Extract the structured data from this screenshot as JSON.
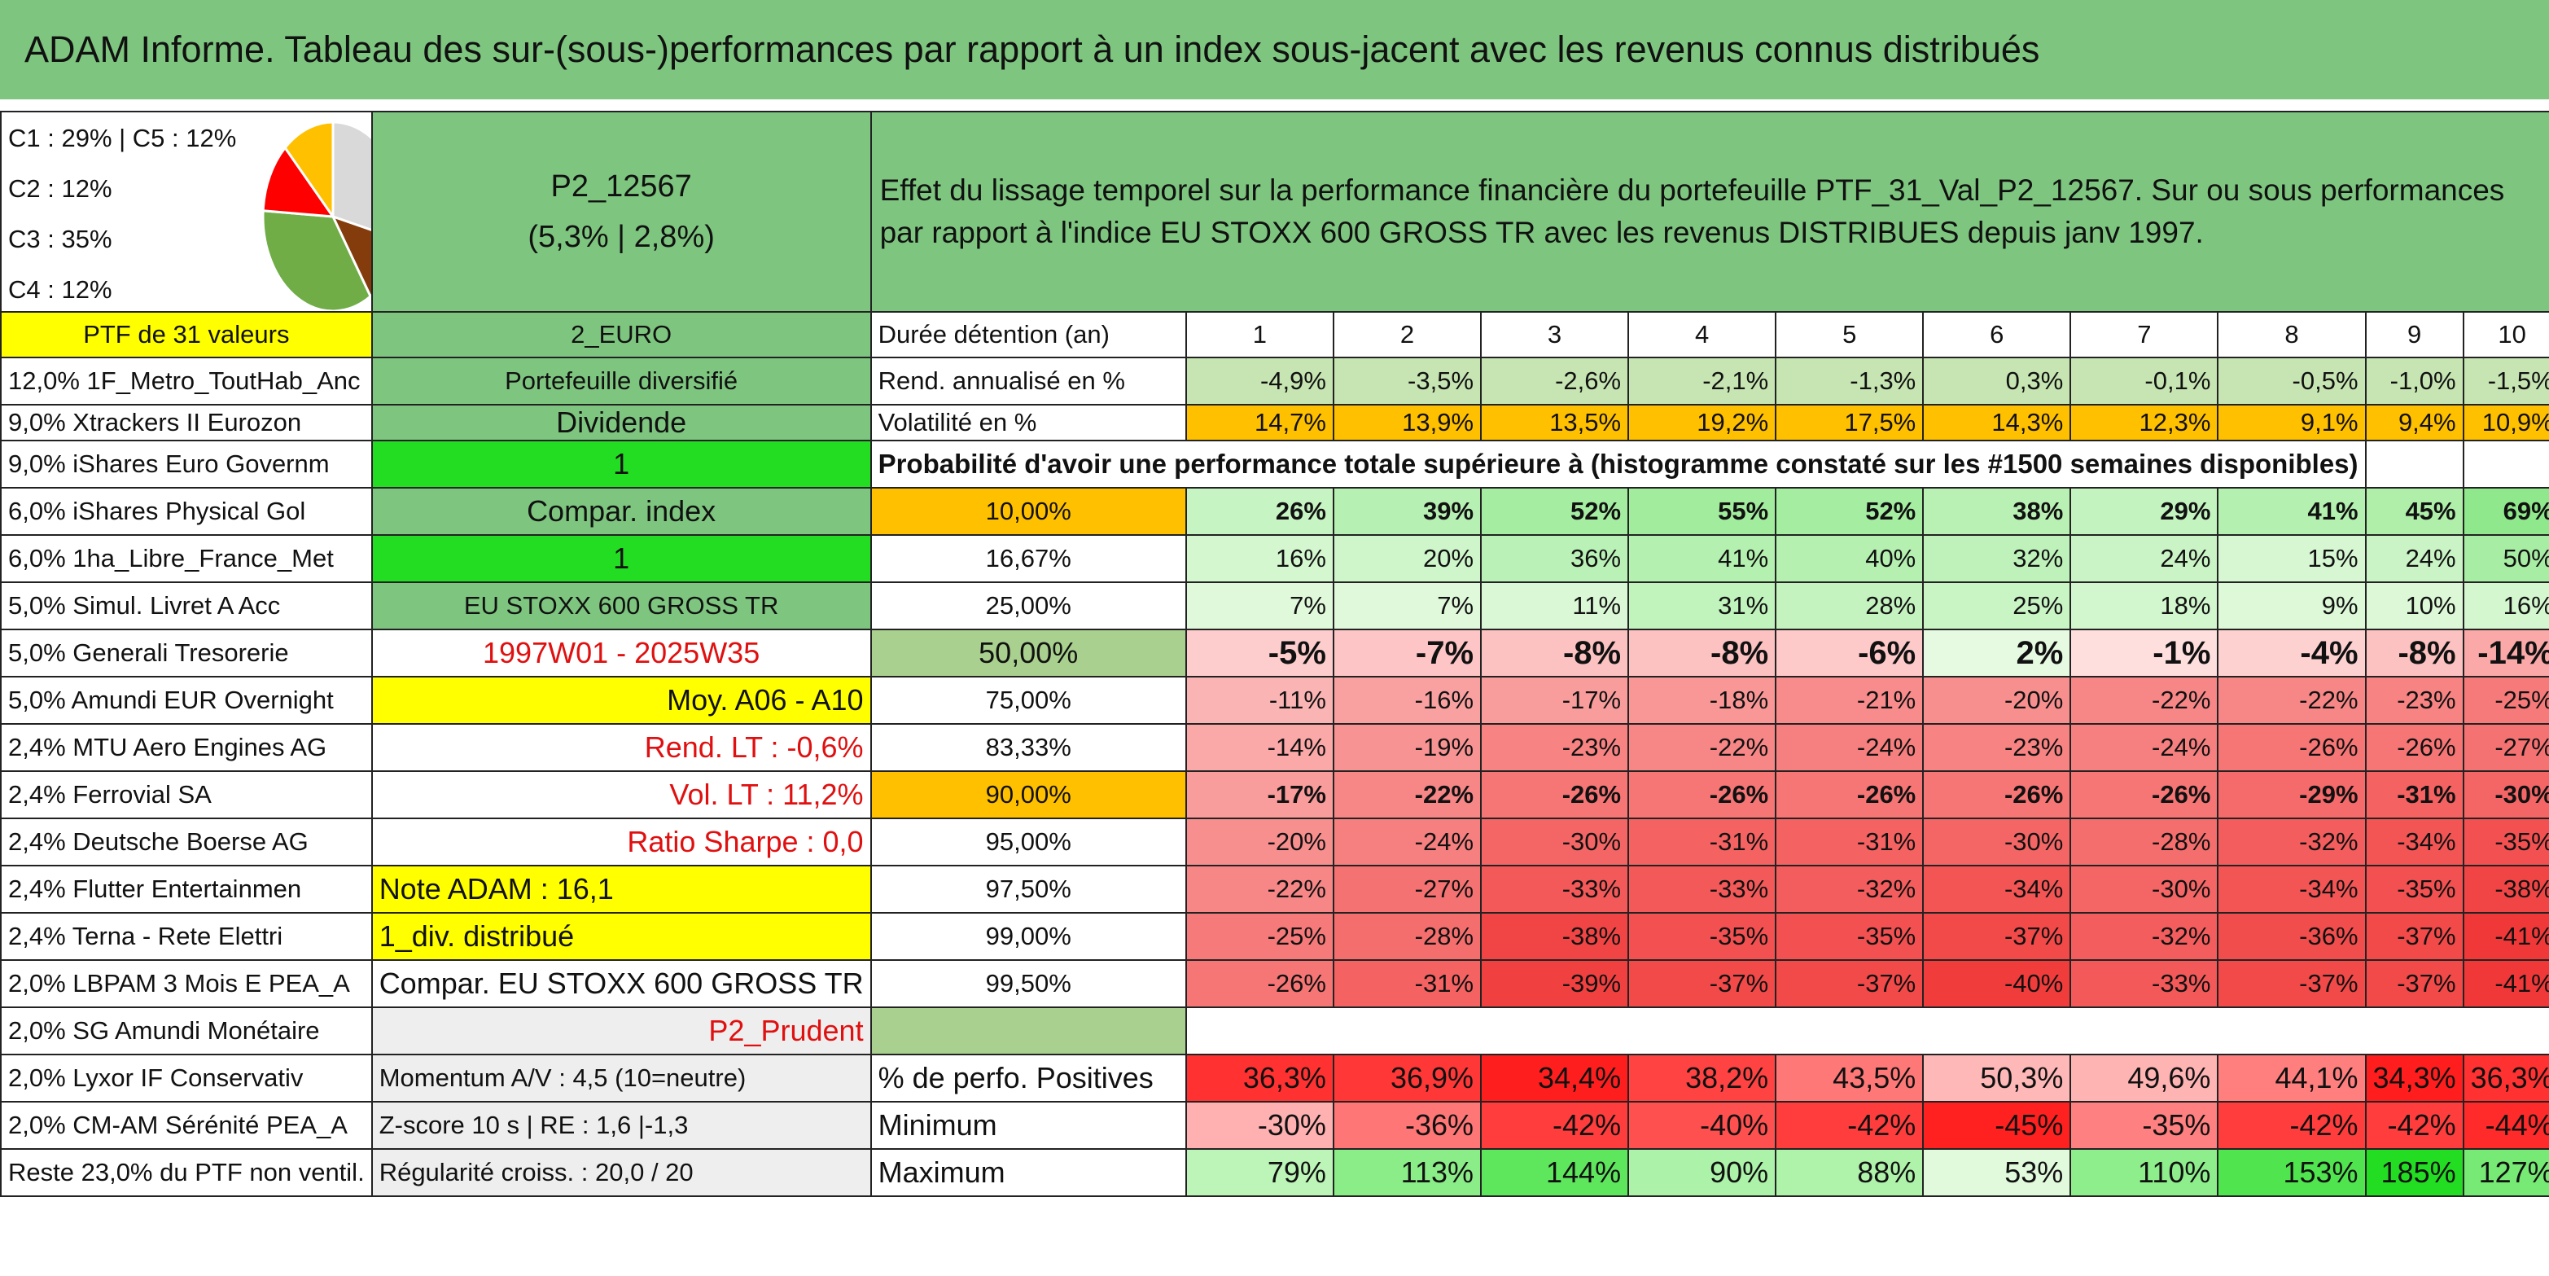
{
  "title": "ADAM Informe. Tableau des sur-(sous-)performances par rapport à un index sous-jacent avec les revenus connus distribués",
  "header": {
    "legend": [
      "C1 : 29% | C5 : 12%",
      "C2 : 12%",
      "C3 : 35%",
      "C4 : 12%"
    ],
    "pie": {
      "slices": [
        29,
        12,
        35,
        12,
        12
      ],
      "colors": [
        "#d9d9d9",
        "#843c0c",
        "#70ad47",
        "#ff0000",
        "#ffc000"
      ]
    },
    "portfolio_code": "P2_12567",
    "portfolio_perf": "(5,3% | 2,8%)",
    "description": "Effet du lissage temporel sur la performance financière du portefeuille PTF_31_Val_P2_12567. Sur ou sous performances par rapport à l'indice EU STOXX 600 GROSS TR avec les revenus DISTRIBUES depuis janv 1997."
  },
  "holdings_header": "PTF de 31 valeurs",
  "holdings": [
    "12,0% 1F_Metro_ToutHab_Anc",
    "9,0% Xtrackers II Eurozon",
    "9,0% iShares Euro Governm",
    "6,0% iShares Physical Gol",
    "6,0% 1ha_Libre_France_Met",
    "5,0% Simul. Livret A Acc",
    "5,0% Generali Tresorerie",
    "5,0% Amundi EUR Overnight",
    "2,4% MTU Aero Engines AG",
    "2,4% Ferrovial SA",
    "2,4% Deutsche Boerse AG",
    "2,4% Flutter Entertainmen",
    "2,4% Terna - Rete Elettri",
    "2,0% LBPAM 3 Mois E PEA_A",
    "2,0% SG Amundi Monétaire",
    "2,0% Lyxor IF Conservativ",
    "2,0% CM-AM Sérénité PEA_A",
    "Reste 23,0% du PTF non ventil."
  ],
  "params": [
    "2_EURO",
    "Portefeuille diversifié",
    "Dividende",
    "1",
    "Compar. index",
    "1",
    "EU STOXX 600 GROSS TR",
    "1997W01 - 2025W35",
    "Moy. A06 - A10",
    "Rend. LT : -0,6%",
    "Vol. LT : 11,2%",
    "Ratio Sharpe : 0,0",
    "Note ADAM : 16,1",
    "1_div. distribué",
    "Compar. EU STOXX 600 GROSS TR",
    "P2_Prudent",
    "Momentum A/V : 4,5 (10=neutre)",
    "Z-score 10 s | RE : 1,6 |-1,3",
    "Régularité croiss. : 20,0 / 20"
  ],
  "labels": {
    "duration": "Durée détention (an)",
    "annual_return": "Rend. annualisé en %",
    "volatility": "Volatilité en %",
    "probability_caption": "Probabilité d'avoir une performance totale supérieure à (histogramme constaté sur les #1500 semaines disponibles)",
    "pct_positive": "% de perfo. Positives",
    "minimum": "Minimum",
    "maximum": "Maximum"
  },
  "years": [
    "1",
    "2",
    "3",
    "4",
    "5",
    "6",
    "7",
    "8",
    "9",
    "10"
  ],
  "annual_return": [
    "-4,9%",
    "-3,5%",
    "-2,6%",
    "-2,1%",
    "-1,3%",
    "0,3%",
    "-0,1%",
    "-0,5%",
    "-1,0%",
    "-1,5%"
  ],
  "volatility": [
    "14,7%",
    "13,9%",
    "13,5%",
    "19,2%",
    "17,5%",
    "14,3%",
    "12,3%",
    "9,1%",
    "9,4%",
    "10,9%"
  ],
  "probabilities": [
    {
      "level": "10,00%",
      "values": [
        "26%",
        "39%",
        "52%",
        "55%",
        "52%",
        "38%",
        "29%",
        "41%",
        "45%",
        "69%"
      ]
    },
    {
      "level": "16,67%",
      "values": [
        "16%",
        "20%",
        "36%",
        "41%",
        "40%",
        "32%",
        "24%",
        "15%",
        "24%",
        "50%"
      ]
    },
    {
      "level": "25,00%",
      "values": [
        "7%",
        "7%",
        "11%",
        "31%",
        "28%",
        "25%",
        "18%",
        "9%",
        "10%",
        "16%"
      ]
    },
    {
      "level": "50,00%",
      "values": [
        "-5%",
        "-7%",
        "-8%",
        "-8%",
        "-6%",
        "2%",
        "-1%",
        "-4%",
        "-8%",
        "-14%"
      ]
    },
    {
      "level": "75,00%",
      "values": [
        "-11%",
        "-16%",
        "-17%",
        "-18%",
        "-21%",
        "-20%",
        "-22%",
        "-22%",
        "-23%",
        "-25%"
      ]
    },
    {
      "level": "83,33%",
      "values": [
        "-14%",
        "-19%",
        "-23%",
        "-22%",
        "-24%",
        "-23%",
        "-24%",
        "-26%",
        "-26%",
        "-27%"
      ]
    },
    {
      "level": "90,00%",
      "values": [
        "-17%",
        "-22%",
        "-26%",
        "-26%",
        "-26%",
        "-26%",
        "-26%",
        "-29%",
        "-31%",
        "-30%"
      ]
    },
    {
      "level": "95,00%",
      "values": [
        "-20%",
        "-24%",
        "-30%",
        "-31%",
        "-31%",
        "-30%",
        "-28%",
        "-32%",
        "-34%",
        "-35%"
      ]
    },
    {
      "level": "97,50%",
      "values": [
        "-22%",
        "-27%",
        "-33%",
        "-33%",
        "-32%",
        "-34%",
        "-30%",
        "-34%",
        "-35%",
        "-38%"
      ]
    },
    {
      "level": "99,00%",
      "values": [
        "-25%",
        "-28%",
        "-38%",
        "-35%",
        "-35%",
        "-37%",
        "-32%",
        "-36%",
        "-37%",
        "-41%"
      ]
    },
    {
      "level": "99,50%",
      "values": [
        "-26%",
        "-31%",
        "-39%",
        "-37%",
        "-37%",
        "-40%",
        "-33%",
        "-37%",
        "-37%",
        "-41%"
      ]
    }
  ],
  "pct_positive": [
    "36,3%",
    "36,9%",
    "34,4%",
    "38,2%",
    "43,5%",
    "50,3%",
    "49,6%",
    "44,1%",
    "34,3%",
    "36,3%"
  ],
  "minimum": [
    "-30%",
    "-36%",
    "-42%",
    "-40%",
    "-42%",
    "-45%",
    "-35%",
    "-42%",
    "-42%",
    "-44%"
  ],
  "maximum": [
    "79%",
    "113%",
    "144%",
    "90%",
    "88%",
    "53%",
    "110%",
    "153%",
    "185%",
    "127%"
  ],
  "colors": {
    "header_green": "#7ec67f",
    "highlight_yellow": "#ffff00",
    "orange": "#ffc000",
    "bright_green": "#22dd22",
    "negative_text": "#e01010"
  }
}
